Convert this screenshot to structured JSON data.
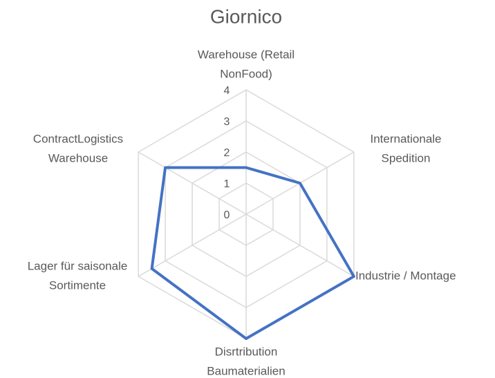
{
  "chart_data": {
    "type": "radar",
    "title": "Giornico",
    "categories": [
      [
        "Warehouse (Retail",
        "NonFood)"
      ],
      [
        "Internationale",
        "Spedition"
      ],
      [
        "Industrie / Montage"
      ],
      [
        "Disrtribution",
        "Baumaterialien"
      ],
      [
        "Lager für saisonale",
        "Sortimente"
      ],
      [
        "ContractLogistics",
        "Warehouse"
      ]
    ],
    "series": [
      {
        "name": "Giornico",
        "color": "#4472c4",
        "values": [
          1.5,
          2,
          4,
          4,
          3.5,
          3
        ]
      }
    ],
    "ylim": [
      0,
      4
    ],
    "yticks": [
      0,
      1,
      2,
      3,
      4
    ],
    "grid": true
  }
}
